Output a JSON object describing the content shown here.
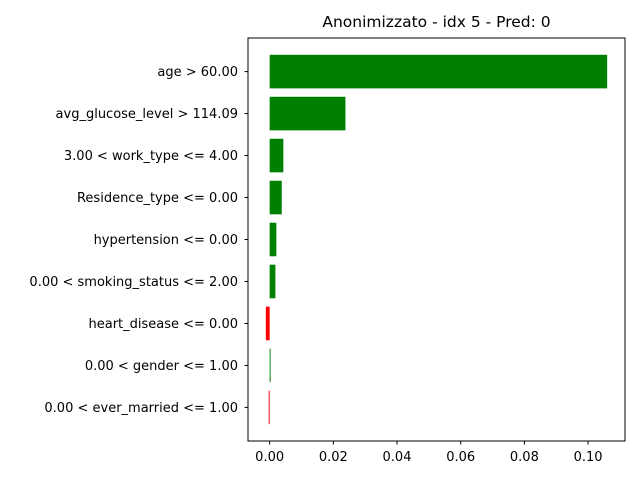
{
  "chart_data": {
    "type": "bar",
    "orientation": "horizontal",
    "title": "Anonimizzato - idx 5 - Pred: 0",
    "xlabel": "",
    "ylabel": "",
    "categories": [
      "age > 60.00",
      "avg_glucose_level > 114.09",
      "3.00 < work_type <= 4.00",
      "Residence_type <= 0.00",
      "hypertension <= 0.00",
      "0.00 < smoking_status <= 2.00",
      "heart_disease <= 0.00",
      "0.00 < gender <= 1.00",
      "0.00 < ever_married <= 1.00"
    ],
    "values": [
      0.106,
      0.0238,
      0.0043,
      0.0038,
      0.0021,
      0.0018,
      -0.0012,
      0.0003,
      -0.0003
    ],
    "xlim": [
      -0.0068,
      0.1116
    ],
    "xticks": [
      0.0,
      0.02,
      0.04,
      0.06,
      0.08,
      0.1
    ],
    "xtick_labels": [
      "0.00",
      "0.02",
      "0.04",
      "0.06",
      "0.08",
      "0.10"
    ],
    "grid": false,
    "colors": {
      "positive": "#008000",
      "negative": "#ff0000"
    }
  }
}
